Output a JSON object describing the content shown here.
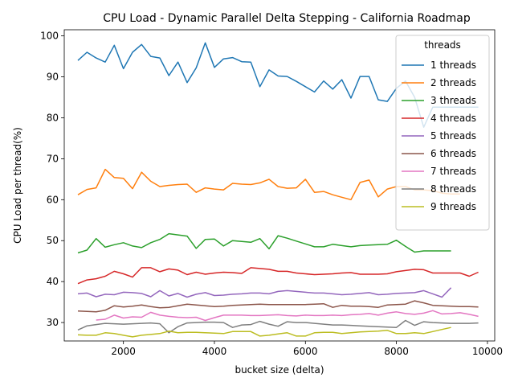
{
  "chart_data": {
    "type": "line",
    "title": "CPU Load - Dynamic Parallel Delta Stepping - California Roadmap",
    "xlabel": "bucket size (delta)",
    "ylabel": "CPU Load per thread(%)",
    "xlim": [
      700,
      10160
    ],
    "ylim": [
      25.5,
      101.5
    ],
    "xticks": [
      2000,
      4000,
      6000,
      8000,
      10000
    ],
    "yticks": [
      30,
      40,
      50,
      60,
      70,
      80,
      90,
      100
    ],
    "grid": false,
    "legend": {
      "title": "threads",
      "position": "top-right"
    },
    "series": [
      {
        "name": "1 threads",
        "color": "#1f77b4",
        "x": [
          1000,
          1200,
          1400,
          1600,
          1800,
          2000,
          2200,
          2400,
          2600,
          2800,
          3000,
          3200,
          3400,
          3600,
          3800,
          4000,
          4200,
          4400,
          4600,
          4800,
          5000,
          5200,
          5400,
          5600,
          5800,
          6000,
          6200,
          6400,
          6600,
          6800,
          7000,
          7200,
          7400,
          7600,
          7800,
          8000,
          8200,
          8400,
          8600,
          8800,
          9000,
          9200,
          9400,
          9600,
          9800
        ],
        "y": [
          94.0,
          96.0,
          94.6,
          93.6,
          97.7,
          92.0,
          96.0,
          97.9,
          95.0,
          94.6,
          90.3,
          93.6,
          88.6,
          92.2,
          98.3,
          92.3,
          94.4,
          94.7,
          93.7,
          93.6,
          87.6,
          91.7,
          90.2,
          90.1,
          88.9,
          87.6,
          86.3,
          89.0,
          87.0,
          89.3,
          84.8,
          90.1,
          90.1,
          84.4,
          84.0,
          87.2,
          89.0,
          85.0,
          77.7,
          82.6,
          82.6,
          82.6,
          82.6,
          82.6,
          82.6
        ]
      },
      {
        "name": "2 threads",
        "color": "#ff7f0e",
        "x": [
          1000,
          1200,
          1400,
          1600,
          1800,
          2000,
          2200,
          2400,
          2600,
          2800,
          3000,
          3200,
          3400,
          3600,
          3800,
          4000,
          4200,
          4400,
          4600,
          4800,
          5000,
          5200,
          5400,
          5600,
          5800,
          6000,
          6200,
          6400,
          6600,
          6800,
          7000,
          7200,
          7400,
          7600,
          7800,
          8000,
          8200,
          8400,
          8600,
          8800,
          9000,
          9200,
          9400
        ],
        "y": [
          61.2,
          62.5,
          62.9,
          67.4,
          65.4,
          65.2,
          62.7,
          66.7,
          64.5,
          63.2,
          63.5,
          63.7,
          63.8,
          61.8,
          62.9,
          62.6,
          62.4,
          64.0,
          63.8,
          63.7,
          64.1,
          65.0,
          63.2,
          62.8,
          62.9,
          65.0,
          61.8,
          62.0,
          61.2,
          60.6,
          60.0,
          64.2,
          64.8,
          60.7,
          62.6,
          63.2,
          63.2,
          62.4,
          62.4,
          62.2,
          61.6,
          61.4,
          61.4
        ]
      },
      {
        "name": "3 threads",
        "color": "#2ca02c",
        "x": [
          1000,
          1200,
          1400,
          1600,
          1800,
          2000,
          2200,
          2400,
          2600,
          2800,
          3000,
          3200,
          3400,
          3600,
          3800,
          4000,
          4200,
          4400,
          4600,
          4800,
          5000,
          5200,
          5400,
          5600,
          5800,
          6000,
          6200,
          6400,
          6600,
          6800,
          7000,
          7200,
          7400,
          7600,
          7800,
          8000,
          8200,
          8400,
          8600,
          8800,
          9000,
          9200
        ],
        "y": [
          47.0,
          47.7,
          50.5,
          48.4,
          49.0,
          49.5,
          48.7,
          48.3,
          49.5,
          50.3,
          51.7,
          51.4,
          51.1,
          48.1,
          50.3,
          50.4,
          48.7,
          50.0,
          49.8,
          49.6,
          50.5,
          48.0,
          51.2,
          50.6,
          49.9,
          49.2,
          48.5,
          48.5,
          49.1,
          48.8,
          48.5,
          48.8,
          48.9,
          49.0,
          49.1,
          50.1,
          48.6,
          47.2,
          47.5,
          47.5,
          47.5,
          47.5
        ]
      },
      {
        "name": "4 threads",
        "color": "#d62728",
        "x": [
          1000,
          1200,
          1400,
          1600,
          1800,
          2000,
          2200,
          2400,
          2600,
          2800,
          3000,
          3200,
          3400,
          3600,
          3800,
          4000,
          4200,
          4400,
          4600,
          4800,
          5000,
          5200,
          5400,
          5600,
          5800,
          6000,
          6200,
          6400,
          6600,
          6800,
          7000,
          7200,
          7400,
          7600,
          7800,
          8000,
          8200,
          8400,
          8600,
          8800,
          9000,
          9200,
          9400,
          9600,
          9800
        ],
        "y": [
          39.5,
          40.4,
          40.7,
          41.3,
          42.5,
          41.9,
          41.1,
          43.4,
          43.4,
          42.4,
          43.1,
          42.8,
          41.7,
          42.3,
          41.8,
          42.1,
          42.3,
          42.2,
          42.0,
          43.4,
          43.2,
          43.0,
          42.5,
          42.5,
          42.1,
          41.9,
          41.7,
          41.8,
          41.9,
          42.1,
          42.2,
          41.8,
          41.8,
          41.8,
          41.9,
          42.4,
          42.7,
          43.0,
          42.9,
          42.1,
          42.1,
          42.1,
          42.1,
          41.3,
          42.3
        ]
      },
      {
        "name": "5 threads",
        "color": "#9467bd",
        "x": [
          1000,
          1200,
          1400,
          1600,
          1800,
          2000,
          2200,
          2400,
          2600,
          2800,
          3000,
          3200,
          3400,
          3600,
          3800,
          4000,
          4200,
          4400,
          4600,
          4800,
          5000,
          5200,
          5400,
          5600,
          5800,
          6000,
          6200,
          6400,
          6600,
          6800,
          7000,
          7200,
          7400,
          7600,
          7800,
          8000,
          8200,
          8400,
          8600,
          8800,
          9000,
          9200
        ],
        "y": [
          37.0,
          37.2,
          36.3,
          36.9,
          36.8,
          37.4,
          37.3,
          37.1,
          36.3,
          37.8,
          36.5,
          37.1,
          36.2,
          36.9,
          37.3,
          36.6,
          36.7,
          36.9,
          37.0,
          37.2,
          37.2,
          37.0,
          37.6,
          37.8,
          37.6,
          37.4,
          37.2,
          37.2,
          37.0,
          36.8,
          36.9,
          37.1,
          37.3,
          36.8,
          36.9,
          37.1,
          37.2,
          37.3,
          37.8,
          37.0,
          36.2,
          38.5
        ]
      },
      {
        "name": "6 threads",
        "color": "#8c564b",
        "x": [
          1000,
          1200,
          1400,
          1600,
          1800,
          2000,
          2200,
          2400,
          2600,
          2800,
          3000,
          3200,
          3400,
          3600,
          3800,
          4000,
          4200,
          4400,
          4600,
          4800,
          5000,
          5200,
          5400,
          5600,
          5800,
          6000,
          6200,
          6400,
          6600,
          6800,
          7000,
          7200,
          7400,
          7600,
          7800,
          8000,
          8200,
          8400,
          8600,
          8800,
          9000,
          9200,
          9400,
          9600,
          9800
        ],
        "y": [
          32.8,
          32.7,
          32.6,
          33.0,
          34.1,
          33.8,
          34.0,
          34.3,
          33.9,
          33.6,
          33.7,
          34.1,
          34.5,
          34.3,
          34.1,
          33.9,
          34.0,
          34.2,
          34.3,
          34.4,
          34.5,
          34.4,
          34.4,
          34.4,
          34.4,
          34.4,
          34.5,
          34.6,
          33.7,
          34.2,
          34.0,
          34.0,
          33.9,
          33.7,
          34.3,
          34.4,
          34.5,
          35.3,
          34.8,
          34.2,
          34.1,
          34.0,
          33.9,
          33.9,
          33.8
        ]
      },
      {
        "name": "7 threads",
        "color": "#e377c2",
        "x": [
          1400,
          1600,
          1800,
          2000,
          2200,
          2400,
          2600,
          2800,
          3000,
          3200,
          3400,
          3600,
          3800,
          4000,
          4200,
          4400,
          4600,
          4800,
          5000,
          5200,
          5400,
          5600,
          5800,
          6000,
          6200,
          6400,
          6600,
          6800,
          7000,
          7200,
          7400,
          7600,
          7800,
          8000,
          8200,
          8400,
          8600,
          8800,
          9000,
          9200,
          9400,
          9600,
          9800
        ],
        "y": [
          30.6,
          30.8,
          31.8,
          31.1,
          31.4,
          31.3,
          32.5,
          31.8,
          31.5,
          31.3,
          31.2,
          31.3,
          30.5,
          31.2,
          31.8,
          31.8,
          31.8,
          31.7,
          31.7,
          31.8,
          31.9,
          31.7,
          31.6,
          31.8,
          31.7,
          31.7,
          31.8,
          31.7,
          31.9,
          32.0,
          32.2,
          31.8,
          32.3,
          32.6,
          32.2,
          32.0,
          32.3,
          32.9,
          32.1,
          32.2,
          32.4,
          32.0,
          31.5
        ]
      },
      {
        "name": "8 threads",
        "color": "#7f7f7f",
        "x": [
          1000,
          1200,
          1400,
          1600,
          1800,
          2000,
          2200,
          2400,
          2600,
          2800,
          3000,
          3200,
          3400,
          3600,
          3800,
          4000,
          4200,
          4400,
          4600,
          4800,
          5000,
          5200,
          5400,
          5600,
          5800,
          6000,
          6200,
          6400,
          6600,
          6800,
          7000,
          7200,
          7400,
          7600,
          7800,
          8000,
          8200,
          8400,
          8600,
          8800,
          9000,
          9200,
          9400,
          9600,
          9800
        ],
        "y": [
          28.2,
          29.2,
          29.5,
          29.8,
          29.7,
          29.6,
          29.7,
          29.8,
          29.9,
          29.7,
          27.5,
          29.0,
          29.9,
          30.0,
          30.1,
          30.1,
          30.0,
          28.8,
          29.4,
          29.5,
          30.3,
          29.6,
          29.1,
          30.2,
          30.0,
          30.0,
          29.8,
          29.6,
          29.4,
          29.4,
          29.3,
          29.2,
          29.1,
          29.0,
          28.9,
          28.8,
          30.5,
          29.3,
          30.2,
          30.0,
          29.9,
          29.8,
          29.8,
          29.8,
          29.9
        ]
      },
      {
        "name": "9 threads",
        "color": "#bcbd22",
        "x": [
          1000,
          1200,
          1400,
          1600,
          1800,
          2000,
          2200,
          2400,
          2600,
          2800,
          3000,
          3200,
          3400,
          3600,
          3800,
          4000,
          4200,
          4400,
          4600,
          4800,
          5000,
          5200,
          5400,
          5600,
          5800,
          6000,
          6200,
          6400,
          6600,
          6800,
          7000,
          7200,
          7400,
          7600,
          7800,
          8000,
          8200,
          8400,
          8600,
          8800,
          9000,
          9200
        ],
        "y": [
          27.0,
          26.9,
          26.9,
          27.5,
          27.3,
          26.9,
          26.5,
          26.9,
          27.1,
          27.3,
          27.9,
          27.5,
          27.6,
          27.6,
          27.5,
          27.4,
          27.3,
          27.8,
          27.8,
          27.8,
          26.7,
          26.9,
          27.2,
          27.5,
          26.7,
          26.7,
          27.5,
          27.6,
          27.6,
          27.3,
          27.5,
          27.7,
          27.8,
          27.9,
          28.1,
          27.3,
          27.3,
          27.5,
          27.3,
          27.8,
          28.3,
          28.8
        ]
      }
    ]
  }
}
